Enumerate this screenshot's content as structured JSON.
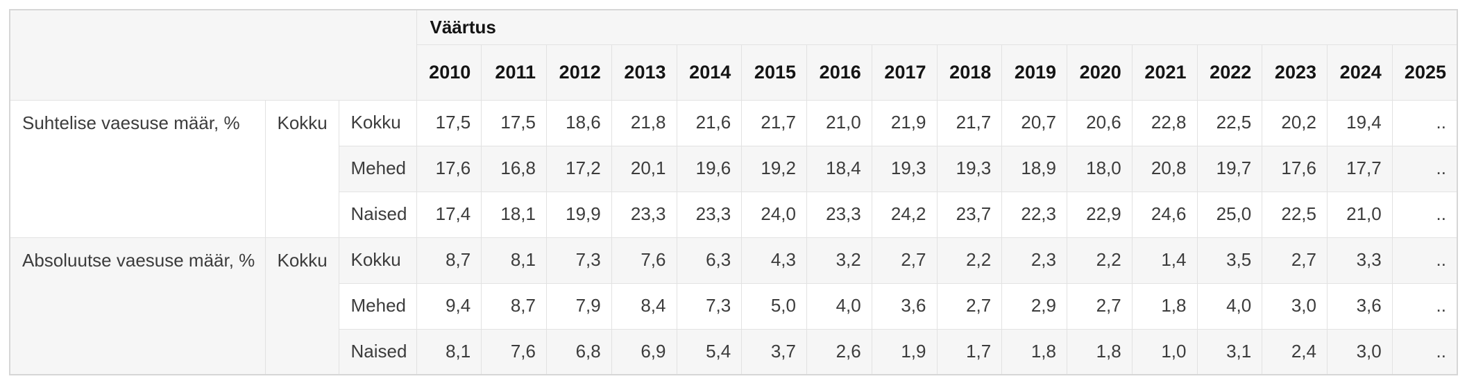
{
  "table": {
    "value_header": "Väärtus",
    "years": [
      "2010",
      "2011",
      "2012",
      "2013",
      "2014",
      "2015",
      "2016",
      "2017",
      "2018",
      "2019",
      "2020",
      "2021",
      "2022",
      "2023",
      "2024",
      "2025"
    ],
    "missing_value_symbol": "..",
    "row_groups": [
      {
        "indicator": "Suhtelise vaesuse määr, %",
        "group": "Kokku",
        "rows": [
          {
            "label": "Kokku",
            "values": [
              "17,5",
              "17,5",
              "18,6",
              "21,8",
              "21,6",
              "21,7",
              "21,0",
              "21,9",
              "21,7",
              "20,7",
              "20,6",
              "22,8",
              "22,5",
              "20,2",
              "19,4",
              ".."
            ]
          },
          {
            "label": "Mehed",
            "values": [
              "17,6",
              "16,8",
              "17,2",
              "20,1",
              "19,6",
              "19,2",
              "18,4",
              "19,3",
              "19,3",
              "18,9",
              "18,0",
              "20,8",
              "19,7",
              "17,6",
              "17,7",
              ".."
            ]
          },
          {
            "label": "Naised",
            "values": [
              "17,4",
              "18,1",
              "19,9",
              "23,3",
              "23,3",
              "24,0",
              "23,3",
              "24,2",
              "23,7",
              "22,3",
              "22,9",
              "24,6",
              "25,0",
              "22,5",
              "21,0",
              ".."
            ]
          }
        ]
      },
      {
        "indicator": "Absoluutse vaesuse määr, %",
        "group": "Kokku",
        "rows": [
          {
            "label": "Kokku",
            "values": [
              "8,7",
              "8,1",
              "7,3",
              "7,6",
              "6,3",
              "4,3",
              "3,2",
              "2,7",
              "2,2",
              "2,3",
              "2,2",
              "1,4",
              "3,5",
              "2,7",
              "3,3",
              ".."
            ]
          },
          {
            "label": "Mehed",
            "values": [
              "9,4",
              "8,7",
              "7,9",
              "8,4",
              "7,3",
              "5,0",
              "4,0",
              "3,6",
              "2,7",
              "2,9",
              "2,7",
              "1,8",
              "4,0",
              "3,0",
              "3,6",
              ".."
            ]
          },
          {
            "label": "Naised",
            "values": [
              "8,1",
              "7,6",
              "6,8",
              "6,9",
              "5,4",
              "3,7",
              "2,6",
              "1,9",
              "1,7",
              "1,8",
              "1,8",
              "1,0",
              "3,1",
              "2,4",
              "3,0",
              ".."
            ]
          }
        ]
      }
    ]
  },
  "colors": {
    "header_background": "#f6f6f6",
    "stripe_background": "#f6f6f6",
    "cell_border": "#e2e2e2",
    "outer_border": "#d6d6d6",
    "header_text": "#141414",
    "body_text": "#3c3c3c"
  }
}
